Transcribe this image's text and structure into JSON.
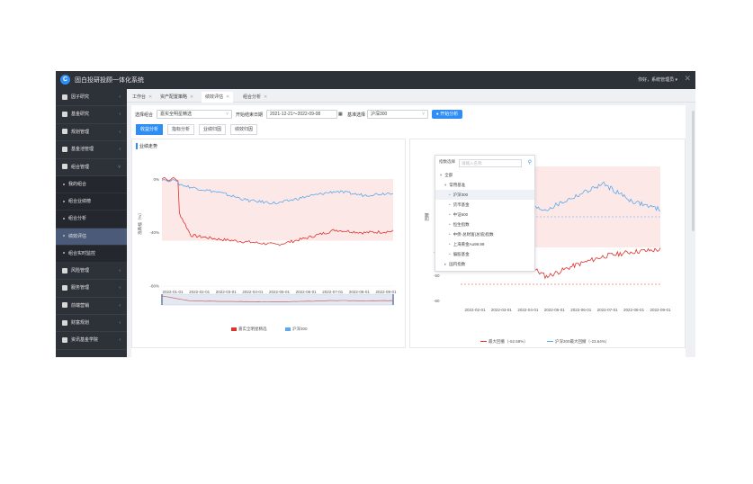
{
  "app": {
    "title": "固白投研投顾一体化系统",
    "logo_glyph": "C",
    "user": "你好，系统管理员 ▾",
    "close_glyph": "✕"
  },
  "sidebar": {
    "items": [
      {
        "label": "因子研究",
        "icon": "settings-icon",
        "arrow": "‹"
      },
      {
        "label": "基金研究",
        "icon": "doc-icon",
        "arrow": "‹"
      },
      {
        "label": "规划管理",
        "icon": "monitor-icon",
        "arrow": "‹"
      },
      {
        "label": "基金池管理",
        "icon": "list-icon",
        "arrow": "‹"
      },
      {
        "label": "组合管理",
        "icon": "grid-icon",
        "arrow": "˅"
      }
    ],
    "subitems": [
      {
        "label": "我的组合",
        "active": false
      },
      {
        "label": "组合业绩榜",
        "active": false
      },
      {
        "label": "组合分析",
        "active": false
      },
      {
        "label": "绩效评估",
        "active": true
      },
      {
        "label": "组合实时监控",
        "active": false
      }
    ],
    "items_after": [
      {
        "label": "风险管理",
        "icon": "bell-icon",
        "arrow": "‹"
      },
      {
        "label": "服务管理",
        "icon": "bell-icon",
        "arrow": "‹"
      },
      {
        "label": "前端营销",
        "icon": "check-icon",
        "arrow": "‹"
      },
      {
        "label": "财富规划",
        "icon": "doc-icon",
        "arrow": "‹"
      },
      {
        "label": "资讯基金学院",
        "icon": "bell-icon",
        "arrow": "‹"
      }
    ]
  },
  "tabs": [
    {
      "label": "工作台",
      "close": "✕",
      "active": false
    },
    {
      "label": "资产配置策略",
      "close": "✕",
      "active": false
    },
    {
      "label": "绩效评估",
      "close": "✕",
      "active": true
    },
    {
      "label": "组合分析",
      "close": "✕",
      "active": false
    }
  ],
  "filters": {
    "portfolio_label": "选择组合",
    "portfolio_value": "嘉实全明星精选",
    "date_label": "开始结束日期",
    "date_value": "2021-12-21～2022-09-08",
    "benchmark_label": "基准选择",
    "benchmark_value": "沪深300",
    "start_button": "开始分析",
    "caret": "˅"
  },
  "subtabs": [
    "收益分析",
    "指标分析",
    "业绩归因",
    "绩效归因"
  ],
  "left_panel": {
    "title": "业绩走势",
    "ylabel": "涨跌幅（%）",
    "legend": [
      {
        "name": "嘉实全明星精选",
        "color": "#e0322b"
      },
      {
        "name": "沪深300",
        "color": "#5da9e9"
      }
    ]
  },
  "right_panel": {
    "ylabel": "回撤",
    "legend": [
      {
        "name": "最大回撤（-52.58%）",
        "color": "#e0322b"
      },
      {
        "name": "沪深300最大回撤（-23.64%）",
        "color": "#5da9e9"
      }
    ]
  },
  "dropdown": {
    "search_label": "指数选择",
    "search_placeholder": "请输入名称",
    "items": [
      {
        "label": "全部",
        "prefix": "▾",
        "indent": 1,
        "selected": false
      },
      {
        "label": "常用基准",
        "prefix": "▾",
        "indent": 2,
        "selected": false
      },
      {
        "label": "沪深300",
        "prefix": "•",
        "indent": 3,
        "selected": true
      },
      {
        "label": "货币基金",
        "prefix": "•",
        "indent": 3,
        "selected": false
      },
      {
        "label": "中证500",
        "prefix": "•",
        "indent": 3,
        "selected": false
      },
      {
        "label": "恒生指数",
        "prefix": "•",
        "indent": 3,
        "selected": false
      },
      {
        "label": "中债-总财富(总值)指数",
        "prefix": "•",
        "indent": 3,
        "selected": false
      },
      {
        "label": "上海黄金Au99.99",
        "prefix": "•",
        "indent": 3,
        "selected": false
      },
      {
        "label": "偏股基金",
        "prefix": "•",
        "indent": 3,
        "selected": false
      },
      {
        "label": "国内指数",
        "prefix": "▸",
        "indent": 2,
        "selected": false
      }
    ]
  },
  "chart_data": [
    {
      "type": "line",
      "title": "业绩走势",
      "ylabel": "涨跌幅（%）",
      "x": [
        "2022-01-01",
        "2022-02-01",
        "2022-03-01",
        "2022-04-01",
        "2022-05-01",
        "2022-06-01",
        "2022-07-01",
        "2022-08-01",
        "2022-09-01"
      ],
      "y_ticks": [
        "0%",
        "-40%",
        "-80%"
      ],
      "ylim": [
        -80,
        15
      ],
      "series": [
        {
          "name": "嘉实全明星精选",
          "color": "#e0322b",
          "values": [
            0,
            -42,
            -45,
            -47,
            -49,
            -44,
            -38,
            -40,
            -39
          ]
        },
        {
          "name": "沪深300",
          "color": "#5da9e9",
          "values": [
            0,
            -6,
            -10,
            -16,
            -18,
            -13,
            -9,
            -12,
            -10
          ]
        }
      ],
      "legend_position": "bottom"
    },
    {
      "type": "line",
      "ylabel": "回撤",
      "x": [
        "2022-02-01",
        "2022-03-01",
        "2022-04-01",
        "2022-05-01",
        "2022-06-01",
        "2022-07-01",
        "2022-08-01",
        "2022-09-01"
      ],
      "y_ticks": [
        "-40",
        "-50",
        "-60"
      ],
      "series": [
        {
          "name": "最大回撤（-52.58%）",
          "color": "#e0322b",
          "values": [
            -39,
            -45,
            -44,
            -52,
            -47,
            -43,
            -41,
            -40
          ]
        },
        {
          "name": "沪深300最大回撤（-23.64%）",
          "color": "#5da9e9",
          "values": [
            -4,
            -10,
            -18,
            -20,
            -14,
            -8,
            -16,
            -20
          ]
        }
      ],
      "legend_position": "bottom"
    }
  ]
}
